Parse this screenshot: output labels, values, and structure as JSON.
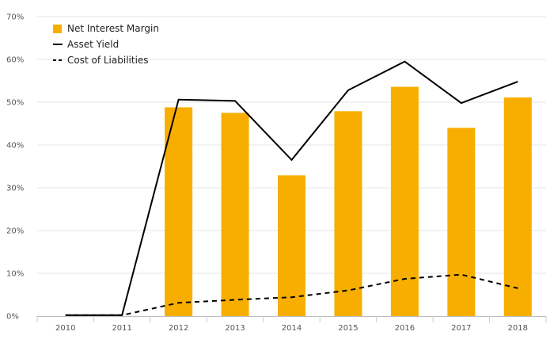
{
  "chart_data": {
    "type": "bar",
    "title": "",
    "xlabel": "",
    "ylabel": "",
    "categories": [
      "2010",
      "2011",
      "2012",
      "2013",
      "2014",
      "2015",
      "2016",
      "2017",
      "2018"
    ],
    "ylim": [
      0,
      70
    ],
    "y_ticks": [
      "0%",
      "10%",
      "20%",
      "30%",
      "40%",
      "50%",
      "60%",
      "70%"
    ],
    "grid": true,
    "legend_position": "top-left",
    "series": [
      {
        "name": "Net Interest Margin",
        "type": "bar",
        "color": "#F7AE00",
        "values": [
          null,
          null,
          48.8,
          47.5,
          32.9,
          47.9,
          53.6,
          44.0,
          51.1
        ]
      },
      {
        "name": "Asset Yield",
        "type": "line",
        "style": "solid",
        "color": "#000000",
        "values": [
          0.2,
          0.2,
          50.6,
          50.3,
          36.5,
          52.8,
          59.5,
          49.8,
          54.8
        ]
      },
      {
        "name": "Cost of Liabilities",
        "type": "line",
        "style": "dashed",
        "color": "#000000",
        "values": [
          0.2,
          0.2,
          3.1,
          3.8,
          4.4,
          6.0,
          8.7,
          9.7,
          6.5
        ]
      }
    ]
  }
}
